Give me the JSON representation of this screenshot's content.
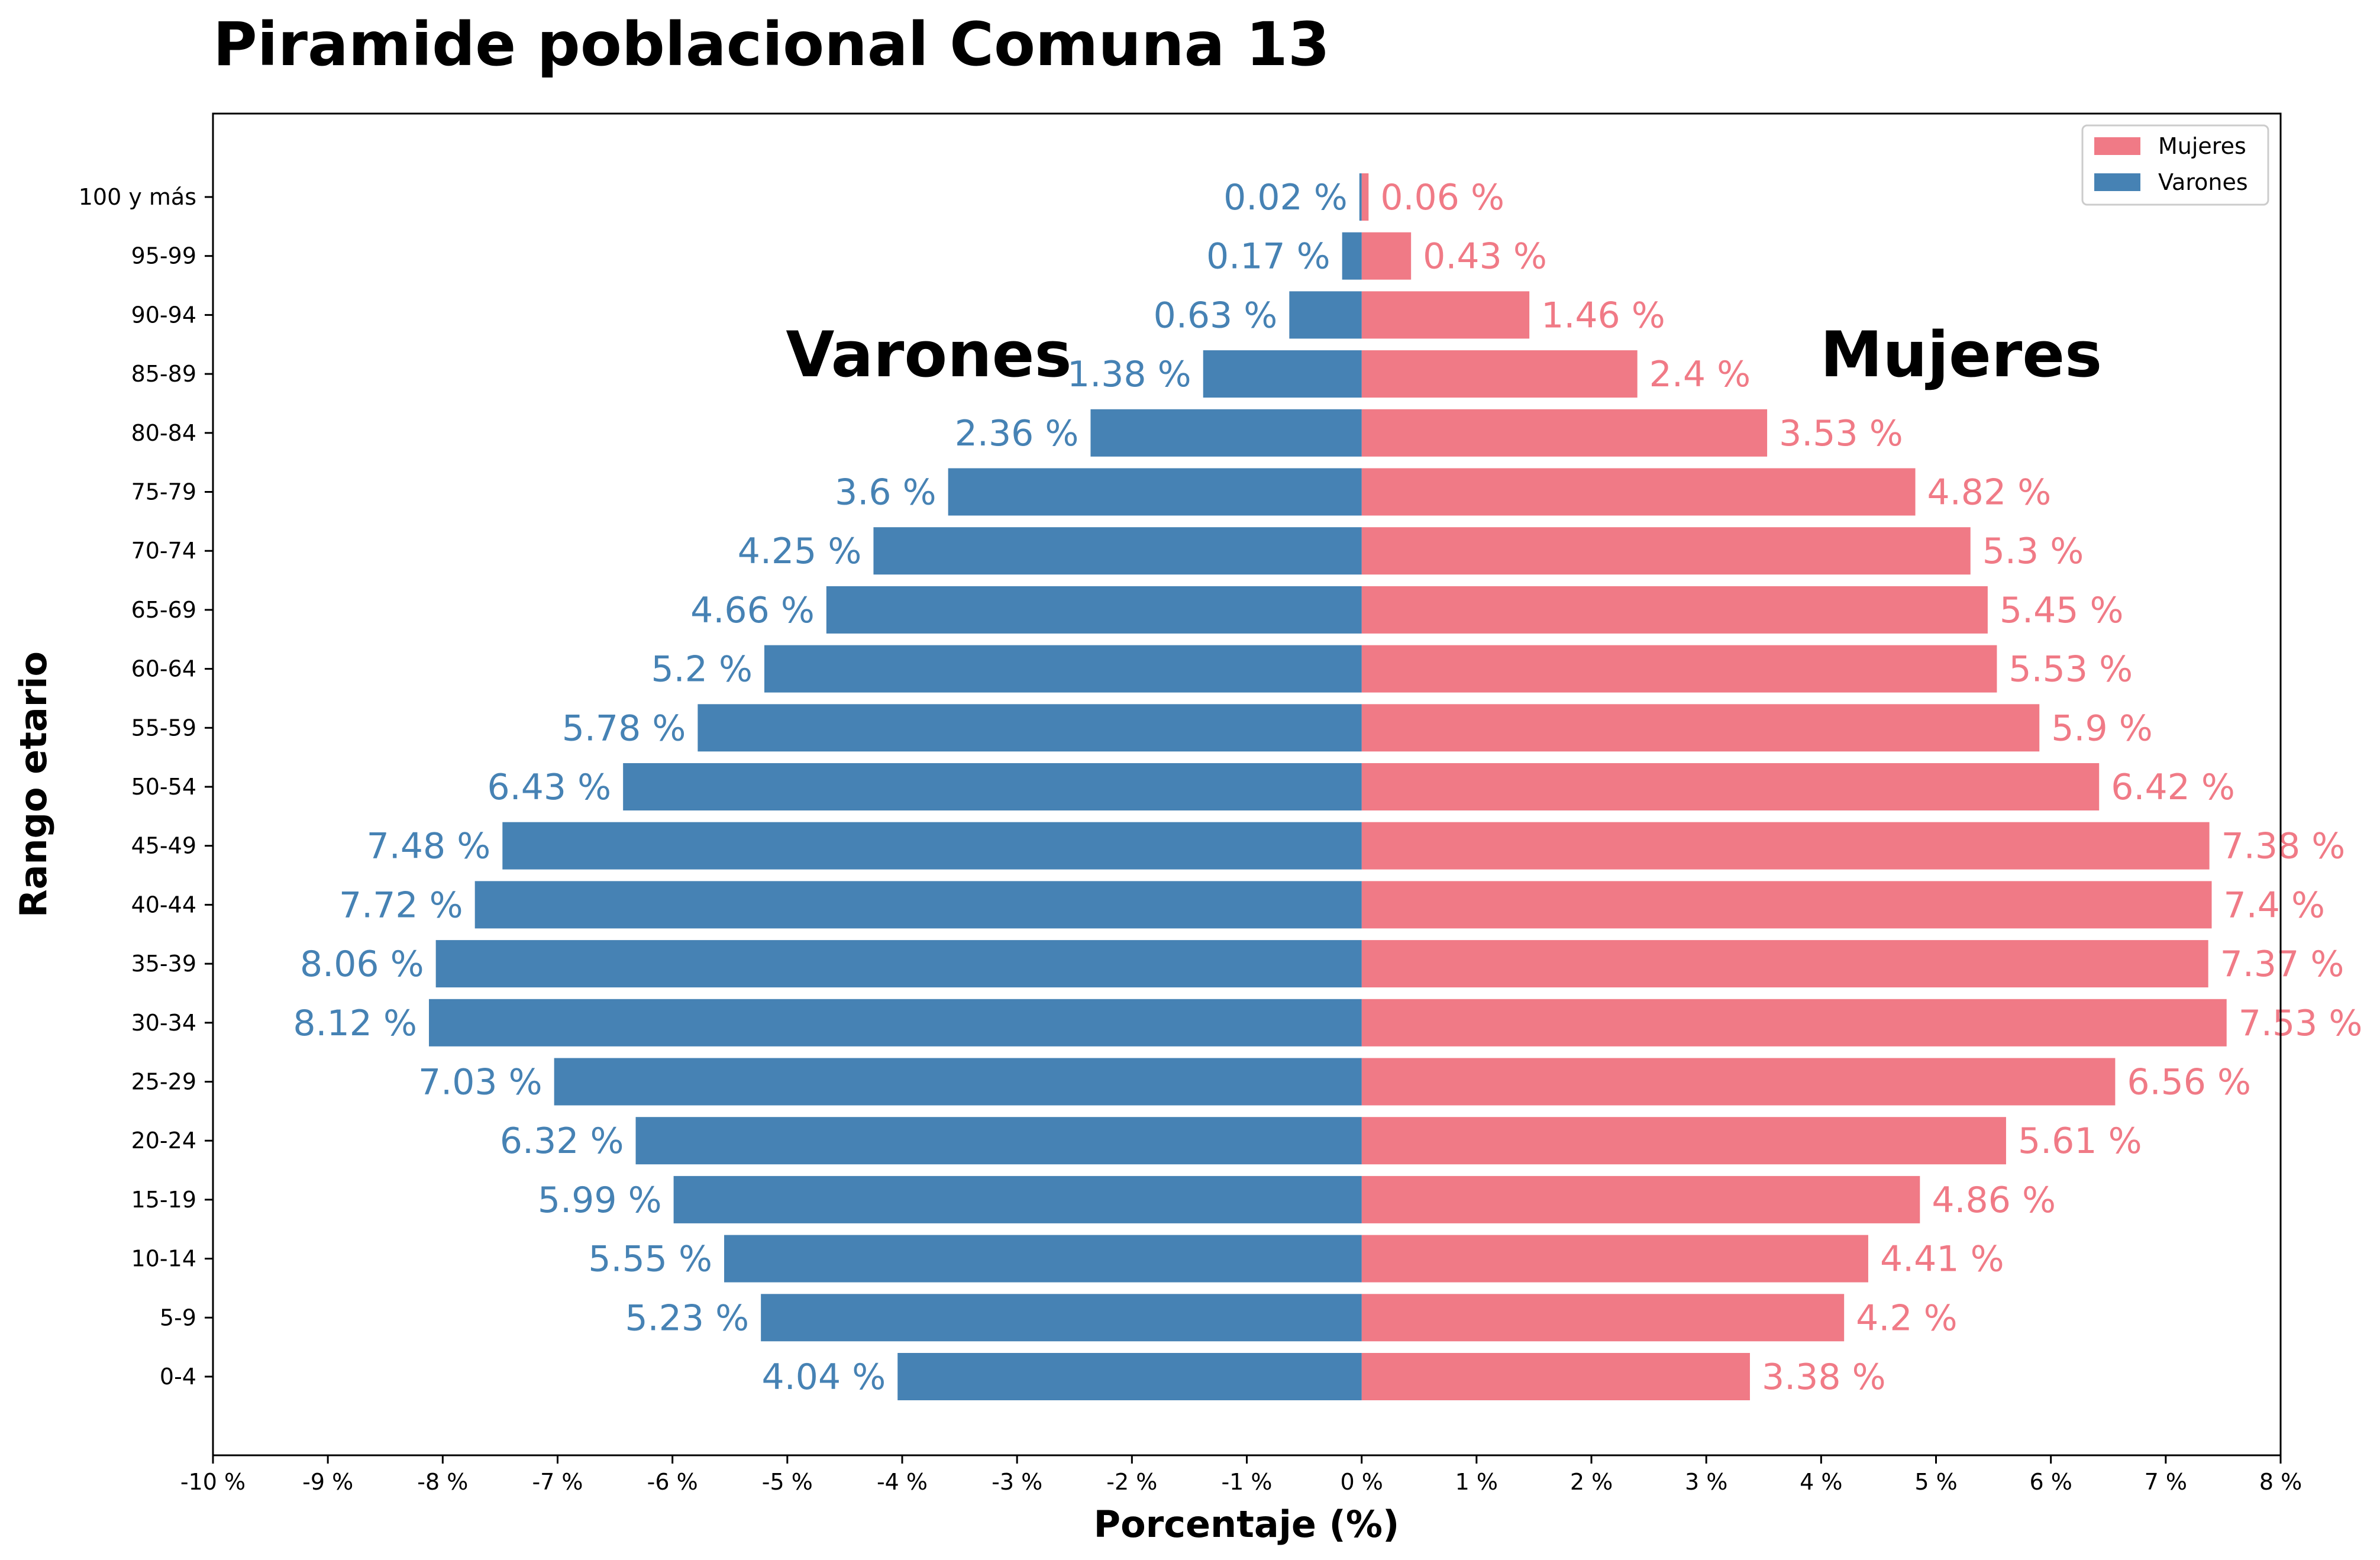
{
  "chart_data": {
    "type": "bar",
    "orientation": "horizontal",
    "title": "Piramide poblacional Comuna 13",
    "xlabel": "Porcentaje (%)",
    "ylabel": "Rango etario",
    "xlim": [
      -10,
      8
    ],
    "x_ticks": [
      "-10 %",
      "-9 %",
      "-8 %",
      "-7 %",
      "-6 %",
      "-5 %",
      "-4 %",
      "-3 %",
      "-2 %",
      "-1 %",
      "0 %",
      "1 %",
      "2 %",
      "3 %",
      "4 %",
      "5 %",
      "6 %",
      "7 %",
      "8 %"
    ],
    "categories": [
      "0-4",
      "5-9",
      "10-14",
      "15-19",
      "20-24",
      "25-29",
      "30-34",
      "35-39",
      "40-44",
      "45-49",
      "50-54",
      "55-59",
      "60-64",
      "65-69",
      "70-74",
      "75-79",
      "80-84",
      "85-89",
      "90-94",
      "95-99",
      "100 y más"
    ],
    "series": [
      {
        "name": "Mujeres",
        "color": "#F07A86",
        "values": [
          3.38,
          4.2,
          4.41,
          4.86,
          5.61,
          6.56,
          7.53,
          7.37,
          7.4,
          7.38,
          6.42,
          5.9,
          5.53,
          5.45,
          5.3,
          4.82,
          3.53,
          2.4,
          1.46,
          0.43,
          0.06
        ],
        "labels": [
          "3.38 %",
          "4.2 %",
          "4.41 %",
          "4.86 %",
          "5.61 %",
          "6.56 %",
          "7.53 %",
          "7.37 %",
          "7.4 %",
          "7.38 %",
          "6.42 %",
          "5.9 %",
          "5.53 %",
          "5.45 %",
          "5.3 %",
          "4.82 %",
          "3.53 %",
          "2.4 %",
          "1.46 %",
          "0.43 %",
          "0.06 %"
        ]
      },
      {
        "name": "Varones",
        "color": "#4682B4",
        "values": [
          -4.04,
          -5.23,
          -5.55,
          -5.99,
          -6.32,
          -7.03,
          -8.12,
          -8.06,
          -7.72,
          -7.48,
          -6.43,
          -5.78,
          -5.2,
          -4.66,
          -4.25,
          -3.6,
          -2.36,
          -1.38,
          -0.63,
          -0.17,
          -0.02
        ],
        "labels": [
          "4.04 %",
          "5.23 %",
          "5.55 %",
          "5.99 %",
          "6.32 %",
          "7.03 %",
          "8.12 %",
          "8.06 %",
          "7.72 %",
          "7.48 %",
          "6.43 %",
          "5.78 %",
          "5.2 %",
          "4.66 %",
          "4.25 %",
          "3.6 %",
          "2.36 %",
          "1.38 %",
          "0.63 %",
          "0.17 %",
          "0.02 %"
        ]
      }
    ],
    "annotations": [
      "Varones",
      "Mujeres"
    ],
    "legend": "top-right",
    "grid": false
  }
}
